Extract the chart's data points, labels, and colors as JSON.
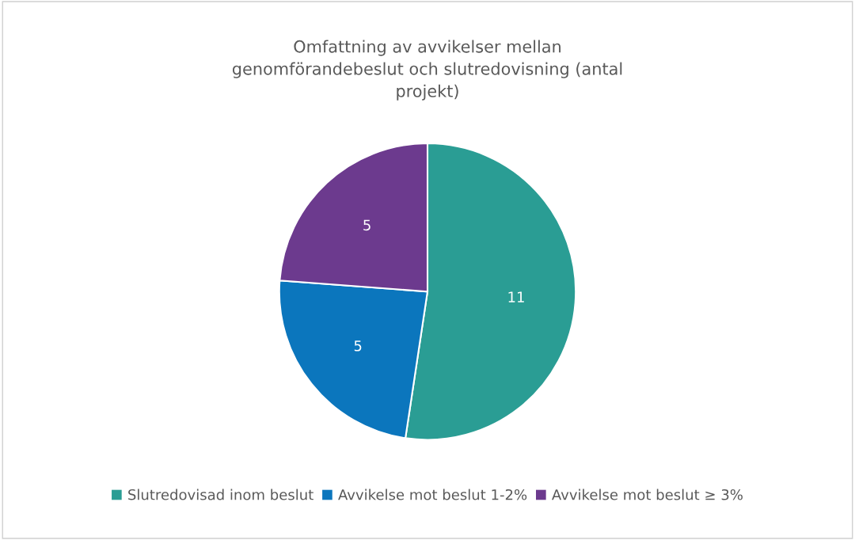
{
  "chart_data": {
    "type": "pie",
    "title": "Omfattning av avvikelser mellan genomförandebeslut och slutredovisning (antal projekt)",
    "categories": [
      "Slutredovisad inom beslut",
      "Avvikelse mot beslut 1-2%",
      "Avvikelse mot beslut ≥ 3%"
    ],
    "values": [
      11,
      5,
      5
    ],
    "colors": [
      "#2a9d94",
      "#0b76bd",
      "#6c3a8e"
    ],
    "data_labels": true,
    "legend": "bottom"
  }
}
